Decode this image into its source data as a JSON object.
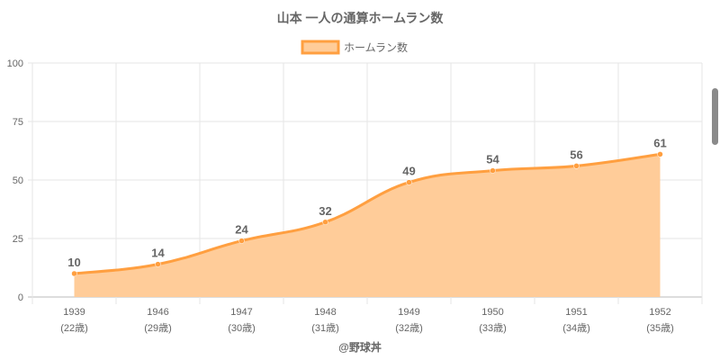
{
  "chart_data": {
    "type": "area",
    "title": "山本 一人の通算ホームラン数",
    "legend": {
      "label": "ホームラン数",
      "position": "top"
    },
    "categories": [
      "1939",
      "1946",
      "1947",
      "1948",
      "1949",
      "1950",
      "1951",
      "1952"
    ],
    "sublabels": [
      "(22歳)",
      "(29歳)",
      "(30歳)",
      "(31歳)",
      "(32歳)",
      "(33歳)",
      "(34歳)",
      "(35歳)"
    ],
    "series": [
      {
        "name": "ホームラン数",
        "values": [
          10,
          14,
          24,
          32,
          49,
          54,
          56,
          61
        ]
      }
    ],
    "ylim": [
      0,
      100
    ],
    "yticks": [
      0,
      25,
      50,
      75,
      100
    ],
    "grid": true,
    "colors": {
      "line": "#ff9f40",
      "fill": "#ffcc99",
      "text": "#666666",
      "grid": "#e5e5e5"
    },
    "footer": "@野球丼"
  }
}
